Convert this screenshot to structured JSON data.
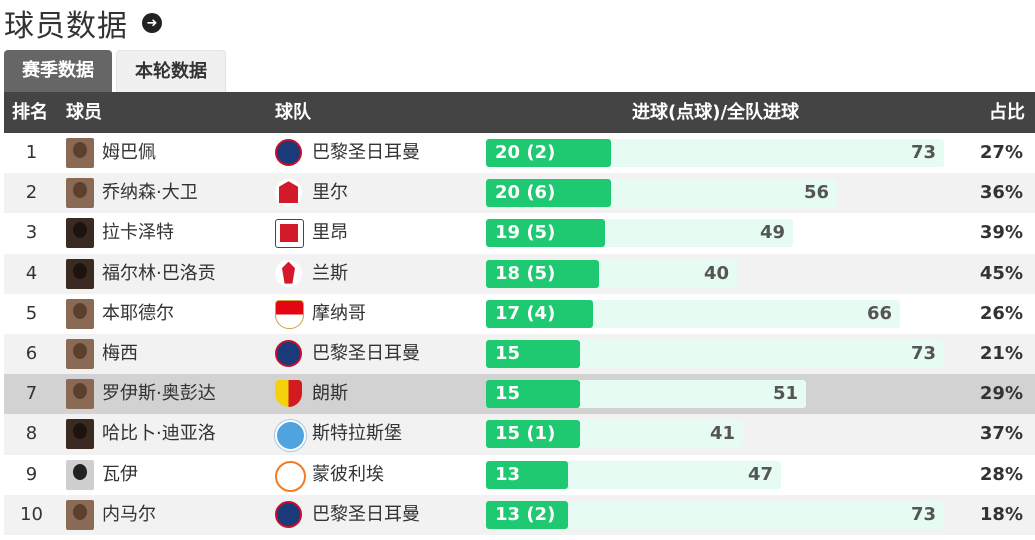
{
  "page": {
    "title": "球员数据",
    "arrow_icon": "arrow-right-circle-icon"
  },
  "tabs": [
    {
      "label": "赛季数据",
      "active": true
    },
    {
      "label": "本轮数据",
      "active": false
    }
  ],
  "table": {
    "headers": {
      "rank": "排名",
      "player": "球员",
      "team": "球队",
      "goals": "进球(点球)/全队进球",
      "ratio": "占比"
    },
    "max_team_goals": 73,
    "rows": [
      {
        "rank": "1",
        "player": "姆巴佩",
        "team": "巴黎圣日耳曼",
        "team_logo": "psg",
        "goals": 20,
        "goals_label": "20 (2)",
        "team_goals": 73,
        "team_goals_label": "73",
        "ratio": "27%"
      },
      {
        "rank": "2",
        "player": "乔纳森·大卫",
        "team": "里尔",
        "team_logo": "lille",
        "goals": 20,
        "goals_label": "20 (6)",
        "team_goals": 56,
        "team_goals_label": "56",
        "ratio": "36%"
      },
      {
        "rank": "3",
        "player": "拉卡泽特",
        "team": "里昂",
        "team_logo": "lyon",
        "goals": 19,
        "goals_label": "19 (5)",
        "team_goals": 49,
        "team_goals_label": "49",
        "ratio": "39%"
      },
      {
        "rank": "4",
        "player": "福尔林·巴洛贡",
        "team": "兰斯",
        "team_logo": "reims",
        "goals": 18,
        "goals_label": "18 (5)",
        "team_goals": 40,
        "team_goals_label": "40",
        "ratio": "45%"
      },
      {
        "rank": "5",
        "player": "本耶德尔",
        "team": "摩纳哥",
        "team_logo": "monaco",
        "goals": 17,
        "goals_label": "17 (4)",
        "team_goals": 66,
        "team_goals_label": "66",
        "ratio": "26%"
      },
      {
        "rank": "6",
        "player": "梅西",
        "team": "巴黎圣日耳曼",
        "team_logo": "psg",
        "goals": 15,
        "goals_label": "15",
        "team_goals": 73,
        "team_goals_label": "73",
        "ratio": "21%"
      },
      {
        "rank": "7",
        "player": "罗伊斯·奥彭达",
        "team": "朗斯",
        "team_logo": "lens",
        "goals": 15,
        "goals_label": "15",
        "team_goals": 51,
        "team_goals_label": "51",
        "ratio": "29%"
      },
      {
        "rank": "8",
        "player": "哈比卜·迪亚洛",
        "team": "斯特拉斯堡",
        "team_logo": "strasbourg",
        "goals": 15,
        "goals_label": "15 (1)",
        "team_goals": 41,
        "team_goals_label": "41",
        "ratio": "37%"
      },
      {
        "rank": "9",
        "player": "瓦伊",
        "team": "蒙彼利埃",
        "team_logo": "montpellier",
        "goals": 13,
        "goals_label": "13",
        "team_goals": 47,
        "team_goals_label": "47",
        "ratio": "28%"
      },
      {
        "rank": "10",
        "player": "内马尔",
        "team": "巴黎圣日耳曼",
        "team_logo": "psg",
        "goals": 13,
        "goals_label": "13 (2)",
        "team_goals": 73,
        "team_goals_label": "73",
        "ratio": "18%"
      }
    ]
  }
}
